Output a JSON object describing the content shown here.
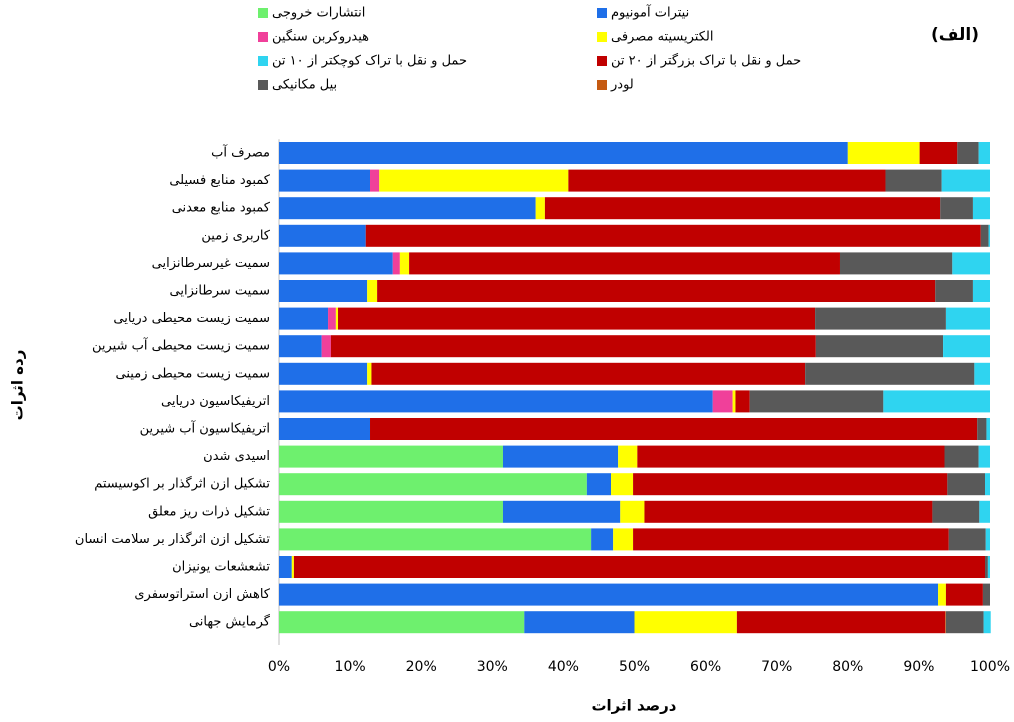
{
  "chart_data": {
    "type": "stacked-barh",
    "annotation": "(الف)",
    "xlabel": "درصد اثرات",
    "ylabel": "رده اثرات",
    "categories": [
      "مصرف آب",
      "کمبود منابع فسیلی",
      "کمبود منابع معدنی",
      "کاربری زمین",
      "سمیت غیرسرطانزایی",
      "سمیت سرطانزایی",
      "سمیت زیست محیطی دریایی",
      "سمیت زیست محیطی آب شیرین",
      "سمیت زیست محیطی زمینی",
      "اتریفیکاسیون دریایی",
      "اتریفیکاسیون آب شیرین",
      "اسیدی شدن",
      "تشکیل ازن اثرگذار بر اکوسیستم",
      "تشکیل ذرات ریز معلق",
      "تشکیل ازن اثرگذار بر سلامت انسان",
      "تشعشعات یونیزان",
      "کاهش ازن استراتوسفری",
      "گرمایش جهانی"
    ],
    "series": [
      {
        "name": "انتشارات خروجی",
        "color": "#6ef06e",
        "values": [
          0,
          0,
          0,
          0,
          0,
          0,
          0,
          0,
          0,
          0,
          0,
          31.5,
          43.3,
          31.5,
          43.9,
          0,
          0,
          34.5
        ]
      },
      {
        "name": "نیترات آمونیوم",
        "color": "#1f6fe8",
        "values": [
          80,
          12.8,
          36.1,
          12.2,
          16,
          12.4,
          6.9,
          6,
          12.4,
          61,
          12.8,
          16.2,
          3.4,
          16.5,
          3.1,
          1.8,
          92.7,
          15.5
        ]
      },
      {
        "name": "هیدروکربن سنگین",
        "color": "#f0409a",
        "values": [
          0,
          1.3,
          0,
          0,
          1,
          0,
          1.1,
          1.3,
          0,
          2.8,
          0,
          0,
          0,
          0,
          0,
          0,
          0,
          0
        ]
      },
      {
        "name": "الکتریسیته مصرفی",
        "color": "#ffff00",
        "values": [
          10.1,
          26.6,
          1.3,
          0,
          1.3,
          1.4,
          0.3,
          0,
          0.6,
          0.4,
          0,
          2.7,
          3.1,
          3.4,
          2.8,
          0.3,
          1.1,
          14.4
        ]
      },
      {
        "name": "حمل و نقل با تراک بزرگتر از ۲۰ تن",
        "color": "#c00000",
        "values": [
          5.3,
          44.6,
          55.6,
          86.5,
          60.6,
          78.5,
          67.1,
          68.2,
          61,
          2,
          85.4,
          43.2,
          44.2,
          40.5,
          44.4,
          97.2,
          5.2,
          29.3
        ]
      },
      {
        "name": "لودر",
        "color": "#c55a11",
        "values": [
          0,
          0,
          0,
          0,
          0,
          0,
          0,
          0,
          0,
          0,
          0,
          0,
          0,
          0,
          0,
          0,
          0,
          0.1
        ]
      },
      {
        "name": "بیل مکانیکی",
        "color": "#595959",
        "values": [
          3,
          7.9,
          4.6,
          1.1,
          15.8,
          5.3,
          18.4,
          17.9,
          23.8,
          18.8,
          1.3,
          4.8,
          5.3,
          6.6,
          5.2,
          0.4,
          1,
          5.3
        ]
      },
      {
        "name": "حمل و نقل با تراک کوچکتر از ۱۰ تن",
        "color": "#2fd4f0",
        "values": [
          1.6,
          6.8,
          2.4,
          0.2,
          5.3,
          2.4,
          6.2,
          6.6,
          2.2,
          15,
          0.5,
          1.6,
          0.7,
          1.5,
          0.6,
          0.3,
          0,
          1
        ]
      }
    ],
    "xlim": [
      0,
      100
    ],
    "xticks": [
      {
        "value": 0,
        "label": "0%"
      },
      {
        "value": 10,
        "label": "10%"
      },
      {
        "value": 20,
        "label": "20%"
      },
      {
        "value": 30,
        "label": "30%"
      },
      {
        "value": 40,
        "label": "40%"
      },
      {
        "value": 50,
        "label": "50%"
      },
      {
        "value": 60,
        "label": "60%"
      },
      {
        "value": 70,
        "label": "70%"
      },
      {
        "value": 80,
        "label": "80%"
      },
      {
        "value": 90,
        "label": "90%"
      },
      {
        "value": 100,
        "label": "100%"
      }
    ]
  }
}
